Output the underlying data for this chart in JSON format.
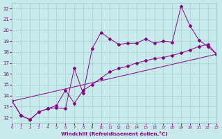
{
  "background_color": "#c8eaea",
  "grid_color": "#a0cccc",
  "line_color": "#880088",
  "xlabel": "Windchill (Refroidissement éolien,°C)",
  "xlim": [
    0,
    23
  ],
  "ylim": [
    11.5,
    22.5
  ],
  "xticks": [
    0,
    1,
    2,
    3,
    4,
    5,
    6,
    7,
    8,
    9,
    10,
    11,
    12,
    13,
    14,
    15,
    16,
    17,
    18,
    19,
    20,
    21,
    22,
    23
  ],
  "yticks": [
    12,
    13,
    14,
    15,
    16,
    17,
    18,
    19,
    20,
    21,
    22
  ],
  "line1_x": [
    0,
    1,
    2,
    3,
    4,
    5,
    6,
    7,
    8,
    9,
    10,
    11,
    12,
    13,
    14,
    15,
    16,
    17,
    18,
    19,
    20,
    21,
    22,
    23
  ],
  "line1_y": [
    13.5,
    12.2,
    11.8,
    12.5,
    12.8,
    12.9,
    12.8,
    16.5,
    14.2,
    18.3,
    19.8,
    19.2,
    18.7,
    18.8,
    18.8,
    19.2,
    18.8,
    19.0,
    18.9,
    22.2,
    20.4,
    19.1,
    18.5,
    17.8
  ],
  "line2_x": [
    0,
    23
  ],
  "line2_y": [
    13.5,
    17.8
  ],
  "line3_x": [
    0,
    1,
    2,
    3,
    4,
    5,
    6,
    7,
    8,
    9,
    10,
    11,
    12,
    13,
    14,
    15,
    16,
    17,
    18,
    19,
    20,
    21,
    22,
    23
  ],
  "line3_y": [
    13.5,
    12.2,
    11.8,
    12.5,
    12.8,
    13.1,
    14.5,
    13.3,
    14.5,
    15.0,
    15.6,
    16.2,
    16.5,
    16.7,
    17.0,
    17.2,
    17.4,
    17.5,
    17.7,
    17.9,
    18.2,
    18.5,
    18.7,
    17.8
  ]
}
